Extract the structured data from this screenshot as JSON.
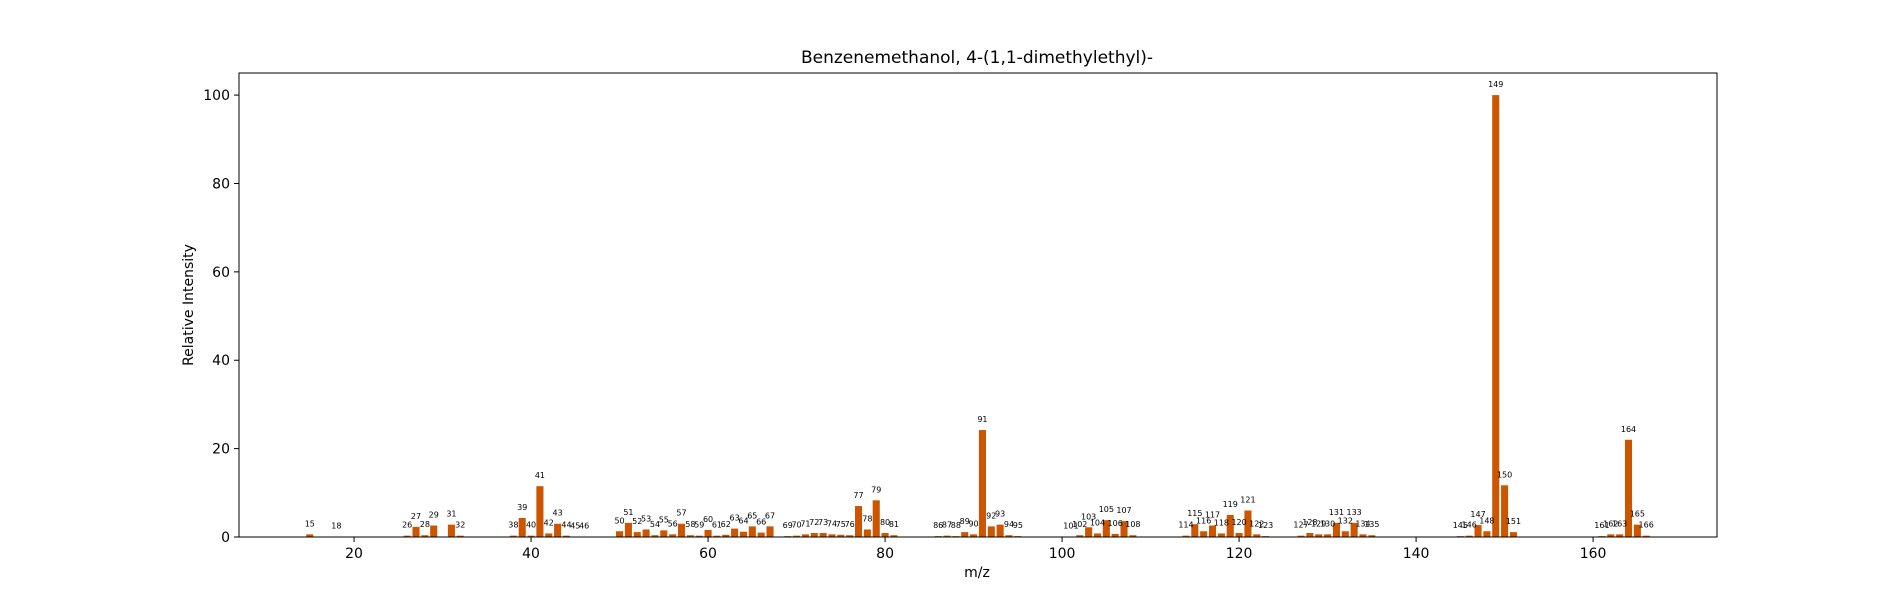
{
  "chart_data": {
    "type": "bar",
    "title": "Benzenemethanol, 4-(1,1-dimethylethyl)-",
    "xlabel": "m/z",
    "ylabel": "Relative Intensity",
    "xlim": [
      7,
      174
    ],
    "ylim": [
      0,
      105
    ],
    "xticks": [
      20,
      40,
      60,
      80,
      100,
      120,
      140,
      160
    ],
    "yticks": [
      0,
      20,
      40,
      60,
      80,
      100
    ],
    "bar_color": "#cc5500",
    "grid": false,
    "legend": false,
    "x": [
      15,
      18,
      26,
      27,
      28,
      29,
      31,
      32,
      38,
      39,
      40,
      41,
      42,
      43,
      44,
      45,
      46,
      50,
      51,
      52,
      53,
      54,
      55,
      56,
      57,
      58,
      59,
      60,
      61,
      62,
      63,
      64,
      65,
      66,
      67,
      69,
      70,
      71,
      72,
      73,
      74,
      75,
      76,
      77,
      78,
      79,
      80,
      81,
      86,
      87,
      88,
      89,
      90,
      91,
      92,
      93,
      94,
      95,
      101,
      102,
      103,
      104,
      105,
      106,
      107,
      108,
      114,
      115,
      116,
      117,
      118,
      119,
      120,
      121,
      122,
      123,
      127,
      128,
      129,
      130,
      131,
      132,
      133,
      134,
      135,
      145,
      146,
      147,
      148,
      149,
      150,
      151,
      161,
      162,
      163,
      164,
      165,
      166
    ],
    "y": [
      0.6,
      0.1,
      0.3,
      2.3,
      0.4,
      2.6,
      2.8,
      0.3,
      0.3,
      4.3,
      0.3,
      11.5,
      0.8,
      3.0,
      0.3,
      0.1,
      0.1,
      1.3,
      3.2,
      1.1,
      1.7,
      0.4,
      1.5,
      0.6,
      3.0,
      0.4,
      0.3,
      1.6,
      0.3,
      0.5,
      1.9,
      1.2,
      2.4,
      1.0,
      2.4,
      0.2,
      0.3,
      0.6,
      0.9,
      0.9,
      0.6,
      0.5,
      0.4,
      7.0,
      1.7,
      8.3,
      0.9,
      0.4,
      0.2,
      0.3,
      0.2,
      1.1,
      0.6,
      24.2,
      2.4,
      2.8,
      0.4,
      0.2,
      0.1,
      0.4,
      2.2,
      0.8,
      3.8,
      0.7,
      3.6,
      0.4,
      0.3,
      2.9,
      1.3,
      2.6,
      0.8,
      5.0,
      0.9,
      6.0,
      0.6,
      0.2,
      0.3,
      0.9,
      0.6,
      0.6,
      3.2,
      1.3,
      3.2,
      0.6,
      0.4,
      0.2,
      0.3,
      2.7,
      1.3,
      100,
      11.7,
      1.1,
      0.2,
      0.6,
      0.6,
      22.0,
      2.8,
      0.3
    ],
    "labels": [
      "15",
      "18",
      "26",
      "27",
      "28",
      "29",
      "31",
      "32",
      "38",
      "39",
      "40",
      "41",
      "42",
      "43",
      "44",
      "45",
      "46",
      "50",
      "51",
      "52",
      "53",
      "54",
      "55",
      "56",
      "57",
      "58",
      "59",
      "60",
      "61",
      "62",
      "63",
      "64",
      "65",
      "66",
      "67",
      "69",
      "70",
      "71",
      "72",
      "73",
      "74",
      "75",
      "76",
      "77",
      "78",
      "79",
      "80",
      "81",
      "86",
      "87",
      "88",
      "89",
      "90",
      "91",
      "92",
      "93",
      "94",
      "95",
      "101",
      "102",
      "103",
      "104",
      "105",
      "106",
      "107",
      "108",
      "114",
      "115",
      "116",
      "117",
      "118",
      "119",
      "120",
      "121",
      "122",
      "123",
      "127",
      "128",
      "129",
      "130",
      "131",
      "132",
      "133",
      "134",
      "135",
      "145",
      "146",
      "147",
      "148",
      "149",
      "150",
      "151",
      "161",
      "162",
      "163",
      "164",
      "165",
      "166"
    ]
  }
}
